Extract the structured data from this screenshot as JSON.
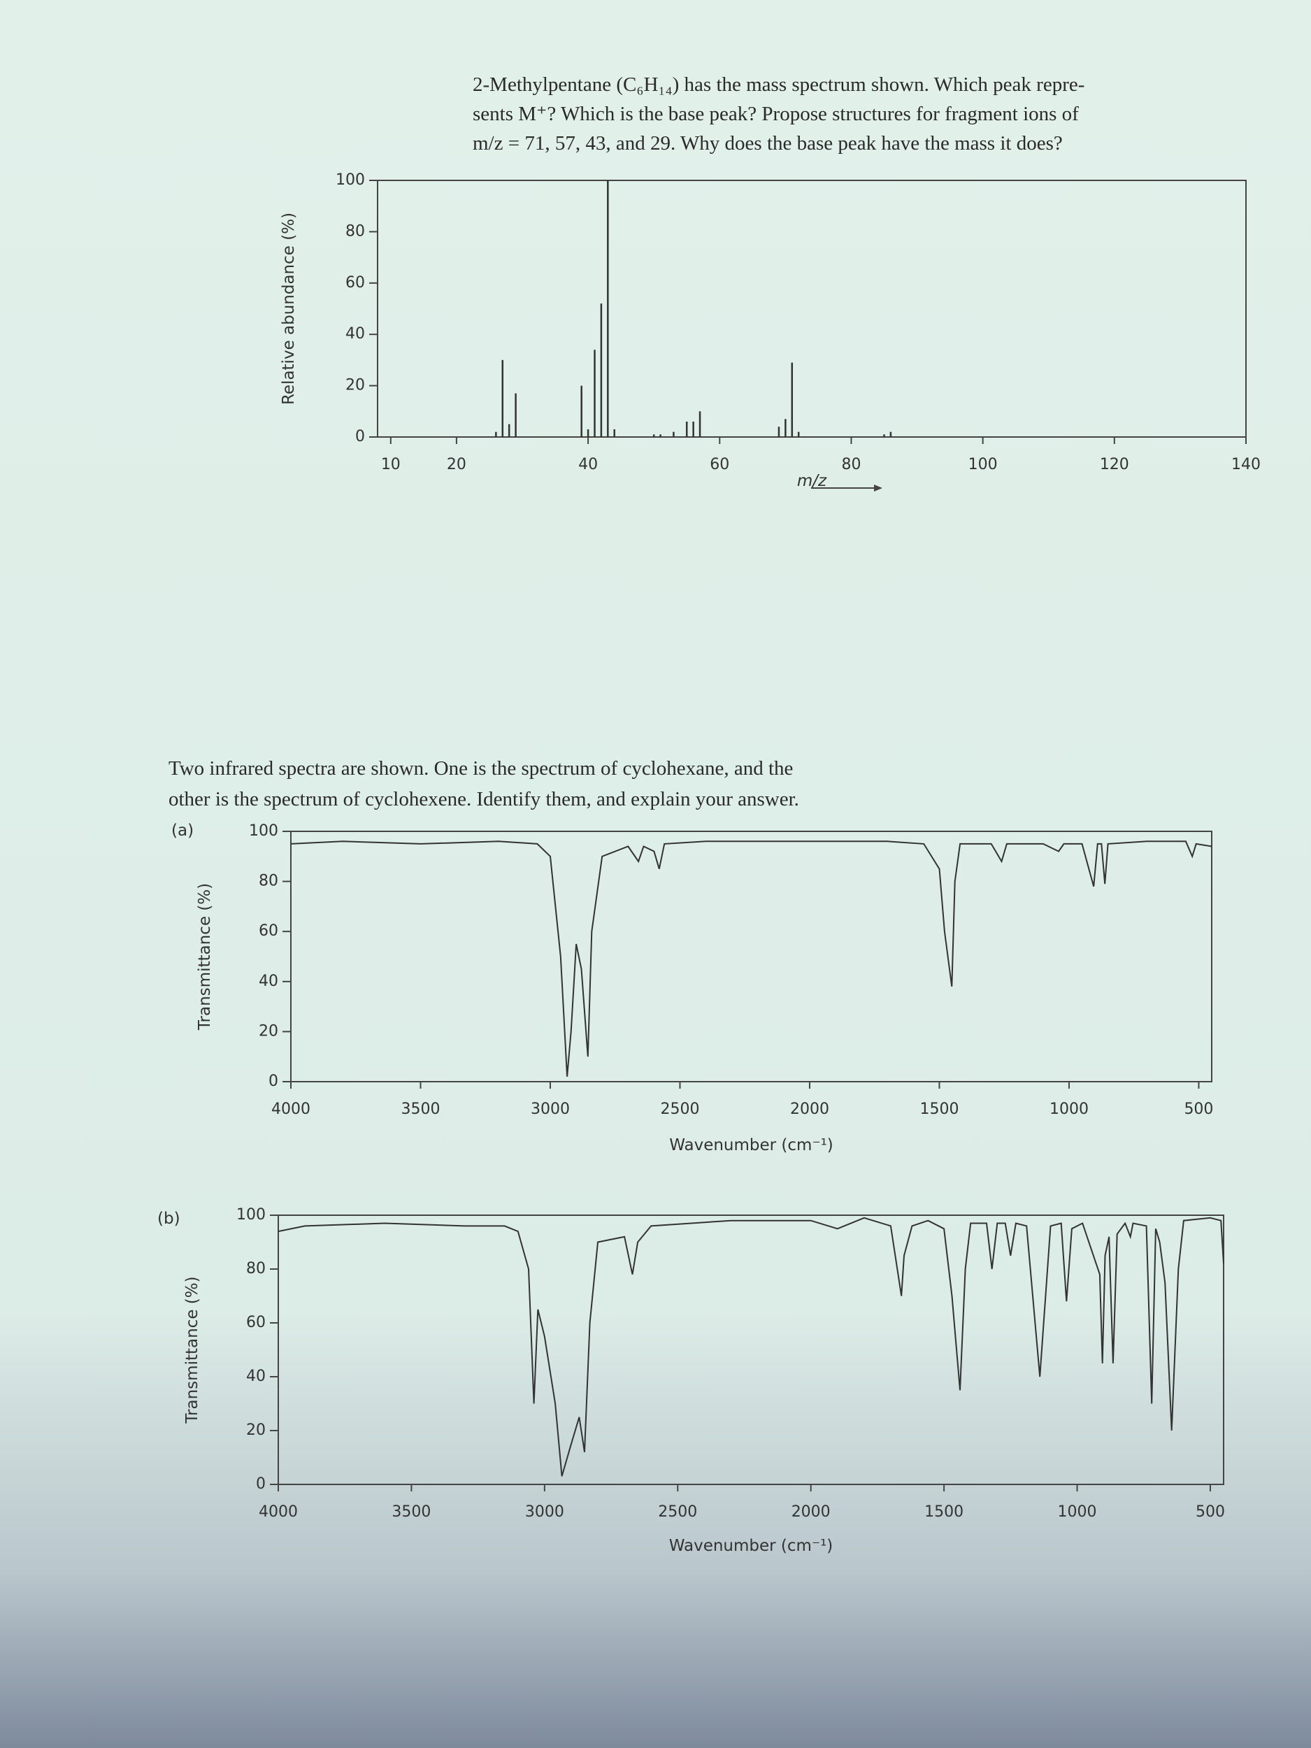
{
  "texts": {
    "problem_1": [
      "2-Methylpentane (C₆H₁₄) has the mass spectrum shown. Which peak repre-",
      "sents M⁺? Which is the base peak? Propose structures for fragment ions of",
      "m/z = 71, 57, 43, and 29. Why does the base peak have the mass it does?"
    ],
    "problem_2": [
      "Two infrared spectra are shown. One is the spectrum of cyclohexane, and the",
      "other is the spectrum of cyclohexene. Identify them, and explain your answer."
    ]
  },
  "chart_data": [
    {
      "type": "bar",
      "x_label": "m/z",
      "y_label": "Relative abundance (%)",
      "color": "#333333",
      "x": [
        26,
        27,
        28,
        29,
        39,
        40,
        41,
        42,
        43,
        44,
        50,
        51,
        53,
        55,
        56,
        57,
        69,
        70,
        71,
        72,
        85,
        86
      ],
      "values": [
        2,
        30,
        5,
        17,
        20,
        3,
        34,
        52,
        100,
        3,
        1,
        1,
        2,
        6,
        6,
        10,
        4,
        7,
        29,
        2,
        1,
        2
      ],
      "xlim": [
        8,
        140
      ],
      "xticks": [
        10,
        20,
        40,
        60,
        80,
        100,
        120,
        140
      ],
      "ylim": [
        0,
        100
      ],
      "yticks": [
        0,
        20,
        40,
        60,
        80,
        100
      ]
    },
    {
      "type": "line",
      "panel": "(a)",
      "x_label": "Wavenumber (cm⁻¹)",
      "y_label": "Transmittance (%)",
      "color": "#333333",
      "x": [
        4000,
        3800,
        3500,
        3200,
        3050,
        3000,
        2960,
        2935,
        2920,
        2900,
        2880,
        2855,
        2840,
        2800,
        2700,
        2660,
        2640,
        2600,
        2580,
        2560,
        2400,
        2000,
        1700,
        1560,
        1500,
        1480,
        1452,
        1440,
        1420,
        1300,
        1260,
        1240,
        1100,
        1040,
        1020,
        950,
        905,
        890,
        875,
        862,
        850,
        700,
        550,
        525,
        510,
        450
      ],
      "values": [
        95,
        96,
        95,
        96,
        95,
        90,
        50,
        2,
        20,
        55,
        45,
        10,
        60,
        90,
        94,
        88,
        94,
        92,
        85,
        95,
        96,
        96,
        96,
        95,
        85,
        60,
        38,
        80,
        95,
        95,
        88,
        95,
        95,
        92,
        95,
        95,
        78,
        95,
        95,
        79,
        95,
        96,
        96,
        90,
        95,
        94
      ],
      "xlim": [
        4000,
        450
      ],
      "xticks": [
        4000,
        3500,
        3000,
        2500,
        2000,
        1500,
        1000,
        500
      ],
      "ylim": [
        0,
        100
      ],
      "yticks": [
        0,
        20,
        40,
        60,
        80,
        100
      ]
    },
    {
      "type": "line",
      "panel": "(b)",
      "x_label": "Wavenumber (cm⁻¹)",
      "y_label": "Transmittance (%)",
      "color": "#333333",
      "x": [
        4000,
        3900,
        3600,
        3300,
        3150,
        3100,
        3060,
        3040,
        3025,
        3000,
        2960,
        2935,
        2900,
        2870,
        2850,
        2830,
        2800,
        2700,
        2670,
        2650,
        2600,
        2300,
        2000,
        1900,
        1800,
        1700,
        1660,
        1650,
        1620,
        1560,
        1500,
        1470,
        1440,
        1420,
        1400,
        1340,
        1320,
        1300,
        1270,
        1250,
        1230,
        1190,
        1140,
        1100,
        1060,
        1040,
        1020,
        980,
        915,
        905,
        895,
        880,
        878,
        865,
        850,
        820,
        800,
        790,
        740,
        720,
        705,
        690,
        670,
        645,
        620,
        600,
        500,
        460,
        450
      ],
      "values": [
        94,
        96,
        97,
        96,
        96,
        94,
        80,
        30,
        65,
        55,
        30,
        3,
        15,
        25,
        12,
        60,
        90,
        92,
        78,
        90,
        96,
        98,
        98,
        95,
        99,
        96,
        70,
        85,
        96,
        98,
        95,
        70,
        35,
        80,
        97,
        97,
        80,
        97,
        97,
        85,
        97,
        96,
        40,
        96,
        97,
        68,
        95,
        97,
        78,
        45,
        85,
        92,
        85,
        45,
        93,
        97,
        92,
        97,
        96,
        30,
        95,
        90,
        75,
        20,
        80,
        98,
        99,
        98,
        82
      ],
      "xlim": [
        4000,
        450
      ],
      "xticks": [
        4000,
        3500,
        3000,
        2500,
        2000,
        1500,
        1000,
        500
      ],
      "ylim": [
        0,
        100
      ],
      "yticks": [
        0,
        20,
        40,
        60,
        80,
        100
      ]
    }
  ]
}
